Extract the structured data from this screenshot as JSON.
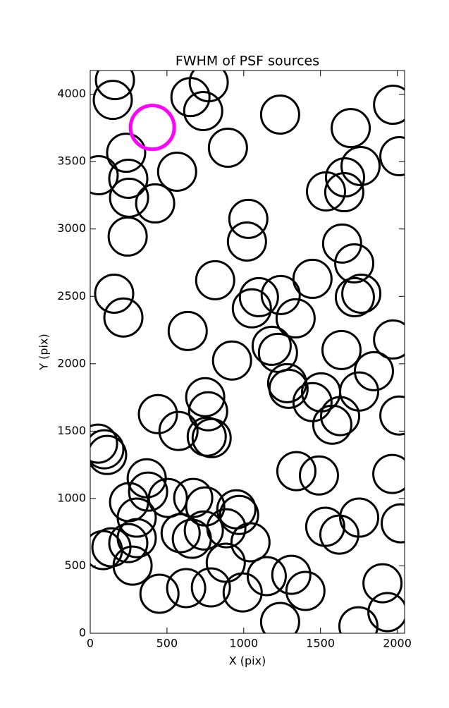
{
  "chart_data": {
    "type": "scatter",
    "title": "FWHM of PSF sources",
    "x_label": "X (pix)",
    "y_label": "Y (pix)",
    "xlim": [
      0,
      2048
    ],
    "ylim": [
      0,
      4176
    ],
    "xticks": [
      0,
      500,
      1000,
      1500,
      2000
    ],
    "yticks": [
      0,
      500,
      1000,
      1500,
      2000,
      2500,
      3000,
      3500,
      4000
    ],
    "series": [
      {
        "color": "#000000",
        "x": [
          161,
          147,
          653,
          772,
          736,
          1237,
          1973,
          897,
          1697,
          234,
          248,
          55,
          566,
          253,
          423,
          1761,
          2014,
          1660,
          1536,
          1655,
          1030,
          1021,
          244,
          814,
          1641,
          1720,
          1448,
          1099,
          1241,
          1053,
          1724,
          1766,
          1338,
          156,
          216,
          635,
          1973,
          1182,
          1223,
          1637,
          924,
          1848,
          1283,
          749,
          1504,
          1292,
          1448,
          1752,
          768,
          1628,
          1577,
          2014,
          441,
          575,
          759,
          791,
          51,
          92,
          110,
          1343,
          1490,
          1968,
          368,
          377,
          506,
          253,
          303,
          671,
          749,
          952,
          970,
          1752,
          1531,
          1623,
          2023,
          589,
          662,
          740,
          887,
          1044,
          303,
          138,
          248,
          83,
          276,
          883,
          1150,
          1310,
          451,
          625,
          786,
          993,
          1402,
          1904,
          1936,
          1237,
          1747
        ],
        "y": [
          4105,
          3958,
          3979,
          4089,
          3875,
          3849,
          3922,
          3603,
          3749,
          3566,
          3373,
          3399,
          3425,
          3232,
          3190,
          3467,
          3540,
          3383,
          3279,
          3273,
          3075,
          2907,
          2944,
          2620,
          2892,
          2745,
          2630,
          2494,
          2510,
          2411,
          2494,
          2520,
          2337,
          2520,
          2343,
          2243,
          2180,
          2133,
          2081,
          2102,
          2024,
          1945,
          1856,
          1752,
          1788,
          1814,
          1715,
          1794,
          1647,
          1611,
          1548,
          1616,
          1626,
          1501,
          1459,
          1448,
          1407,
          1365,
          1323,
          1203,
          1171,
          1182,
          1150,
          1051,
          1004,
          973,
          858,
          1004,
          941,
          920,
          878,
          858,
          790,
          732,
          816,
          743,
          701,
          763,
          779,
          675,
          706,
          638,
          669,
          617,
          502,
          523,
          424,
          434,
          293,
          335,
          340,
          303,
          314,
          371,
          157,
          84,
          52
        ]
      },
      {
        "color": "#ff00ff",
        "x": [
          405
        ],
        "y": [
          3754
        ]
      }
    ]
  }
}
